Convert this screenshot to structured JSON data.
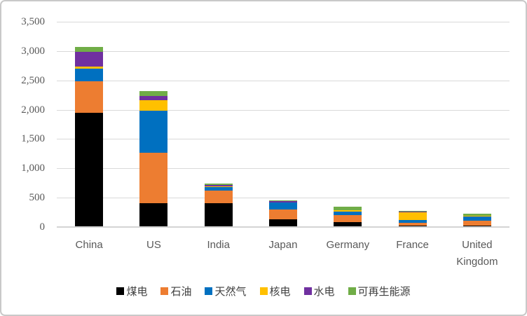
{
  "chart_data": {
    "type": "bar",
    "stacked": true,
    "title": "",
    "xlabel": "",
    "ylabel": "",
    "categories": [
      "China",
      "US",
      "India",
      "Japan",
      "Germany",
      "France",
      "United Kingdom"
    ],
    "series": [
      {
        "name": "煤电",
        "color": "#000000",
        "values": [
          1940,
          395,
          400,
          120,
          70,
          8,
          12
        ]
      },
      {
        "name": "石油",
        "color": "#ED7D31",
        "values": [
          535,
          855,
          210,
          172,
          118,
          55,
          80
        ]
      },
      {
        "name": "天然气",
        "color": "#0070C0",
        "values": [
          215,
          725,
          60,
          115,
          65,
          48,
          75
        ]
      },
      {
        "name": "核电",
        "color": "#FFC000",
        "values": [
          40,
          170,
          10,
          4,
          17,
          130,
          16
        ]
      },
      {
        "name": "水电",
        "color": "#7030A0",
        "values": [
          250,
          80,
          30,
          25,
          5,
          8,
          2
        ]
      },
      {
        "name": "可再生能源",
        "color": "#70AD47",
        "values": [
          75,
          80,
          17,
          12,
          55,
          12,
          25
        ]
      }
    ],
    "ylim": [
      0,
      3500
    ],
    "ytick_step": 500,
    "ytick_labels": [
      "0",
      "500",
      "1,000",
      "1,500",
      "2,000",
      "2,500",
      "3,000",
      "3,500"
    ],
    "grid": true,
    "legend_position": "bottom",
    "gridline_color": "#D9D9D9",
    "axis_line_color": "#D4D4D4",
    "tick_text_color": "#595959",
    "legend_text_color": "#404040",
    "frame_border_color": "#C9C9C9",
    "background_color": "#FFFFFF"
  }
}
